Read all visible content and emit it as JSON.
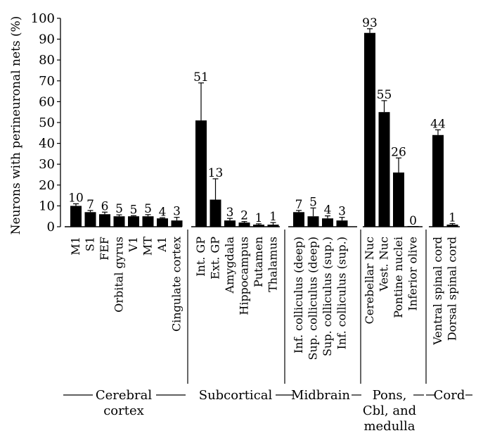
{
  "chart_data": {
    "type": "bar",
    "ylabel": "Neurons with perineuronal nets (%)",
    "ylim": [
      0,
      100
    ],
    "yticks": [
      0,
      10,
      20,
      30,
      40,
      50,
      60,
      70,
      80,
      90,
      100
    ],
    "groups": [
      {
        "name": "Cerebral cortex",
        "label_lines": [
          "Cerebral",
          "cortex"
        ],
        "bars": [
          {
            "category": "M1",
            "value": 10,
            "error": 1
          },
          {
            "category": "S1",
            "value": 7,
            "error": 0.8
          },
          {
            "category": "FEF",
            "value": 6,
            "error": 1
          },
          {
            "category": "Orbital gyrus",
            "value": 5,
            "error": 0.7
          },
          {
            "category": "V1",
            "value": 5,
            "error": 0.3
          },
          {
            "category": "MT",
            "value": 5,
            "error": 0.8
          },
          {
            "category": "A1",
            "value": 4,
            "error": 0.3
          },
          {
            "category": "Cingulate cortex",
            "value": 3,
            "error": 1.5
          }
        ]
      },
      {
        "name": "Subcortical",
        "label_lines": [
          "Subcortical"
        ],
        "bars": [
          {
            "category": "Int. GP",
            "value": 51,
            "error": 18
          },
          {
            "category": "Ext. GP",
            "value": 13,
            "error": 10
          },
          {
            "category": "Amygdala",
            "value": 3,
            "error": 1
          },
          {
            "category": "Hippocampus",
            "value": 2,
            "error": 0.5
          },
          {
            "category": "Putamen",
            "value": 1,
            "error": 0.4
          },
          {
            "category": "Thalamus",
            "value": 1,
            "error": 1
          }
        ]
      },
      {
        "name": "Midbrain",
        "label_lines": [
          "Midbrain"
        ],
        "bars": [
          {
            "category": "Inf. colliculus (deep)",
            "value": 7,
            "error": 0.8
          },
          {
            "category": "Sup. colliculus (deep)",
            "value": 5,
            "error": 4
          },
          {
            "category": "Sup. colliculus (sup.)",
            "value": 4,
            "error": 1.2
          },
          {
            "category": "Inf. colliculus (sup.)",
            "value": 3,
            "error": 1.5
          }
        ]
      },
      {
        "name": "Pons, Cbl, and medulla",
        "label_lines": [
          "Pons,",
          "Cbl, and",
          "medulla"
        ],
        "bars": [
          {
            "category": "Cerebellar Nuc",
            "value": 93,
            "error": 2
          },
          {
            "category": "Vest. Nuc",
            "value": 55,
            "error": 5.5
          },
          {
            "category": "Pontine nuclei",
            "value": 26,
            "error": 7
          },
          {
            "category": "Inferior olive",
            "value": 0,
            "error": 0
          }
        ]
      },
      {
        "name": "Cord",
        "label_lines": [
          "Cord"
        ],
        "bars": [
          {
            "category": "Ventral spinal cord",
            "value": 44,
            "error": 2.5
          },
          {
            "category": "Dorsal spinal cord",
            "value": 1,
            "error": 0.5
          }
        ]
      }
    ]
  }
}
